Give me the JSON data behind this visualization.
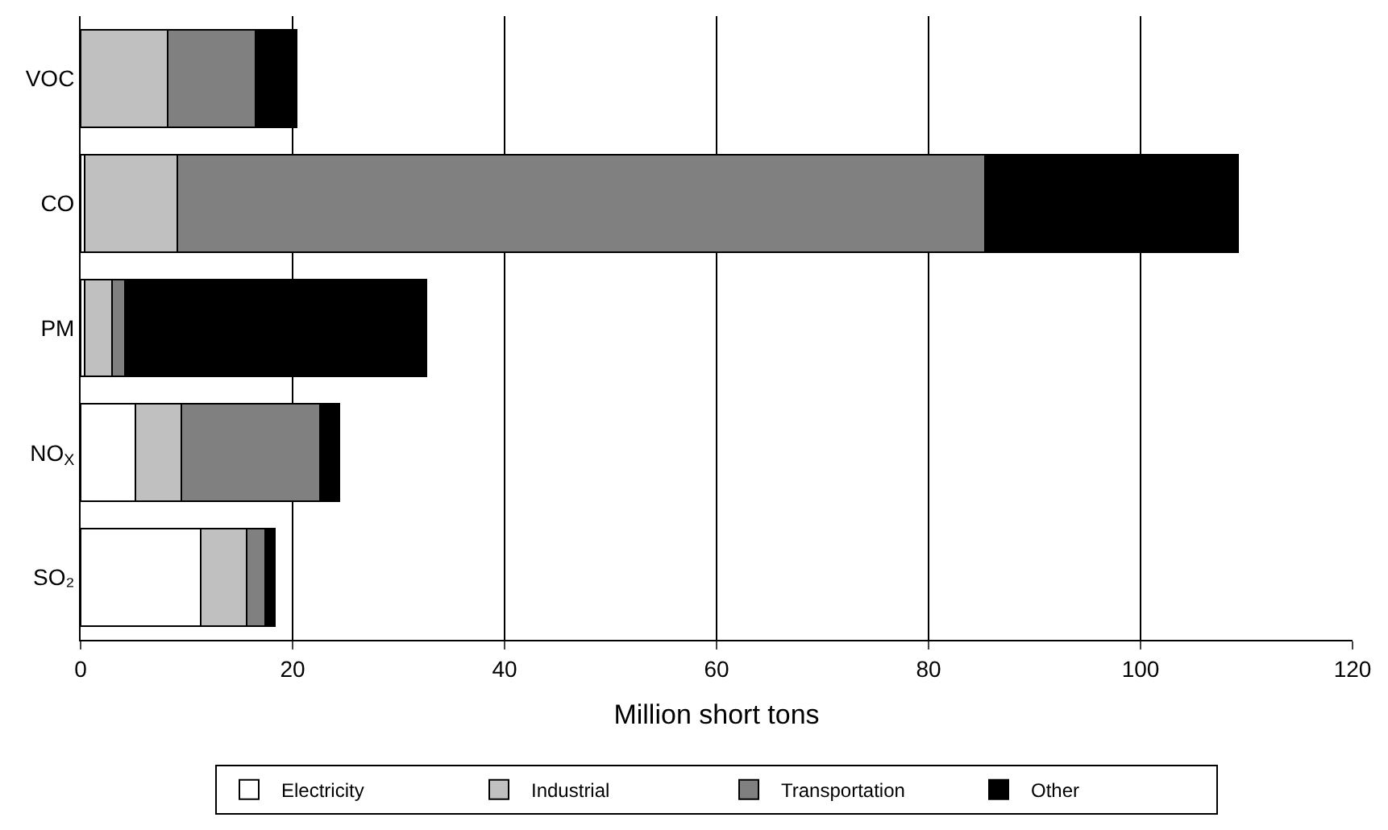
{
  "chart_data": {
    "type": "bar",
    "orientation": "horizontal",
    "stacked": true,
    "categories": [
      "VOC",
      "CO",
      "PM",
      "NO$_{X}$",
      "SO₂"
    ],
    "series": [
      {
        "name": "Electricity",
        "color": "#ffffff",
        "values": [
          0,
          0.4,
          0.4,
          5.2,
          11.3
        ]
      },
      {
        "name": "Industrial",
        "color": "#c0c0c0",
        "values": [
          8.2,
          8.7,
          2.6,
          4.3,
          4.4
        ]
      },
      {
        "name": "Transportation",
        "color": "#808080",
        "values": [
          8.3,
          76.2,
          1.2,
          13.1,
          1.7
        ]
      },
      {
        "name": "Other",
        "color": "#000000",
        "values": [
          3.9,
          23.9,
          28.4,
          1.8,
          0.9
        ]
      }
    ],
    "xlabel": "Million short tons",
    "xlim": [
      0,
      120
    ],
    "xticks": [
      0,
      20,
      40,
      60,
      80,
      100,
      120
    ],
    "grid": "x",
    "legend": "bottom"
  }
}
